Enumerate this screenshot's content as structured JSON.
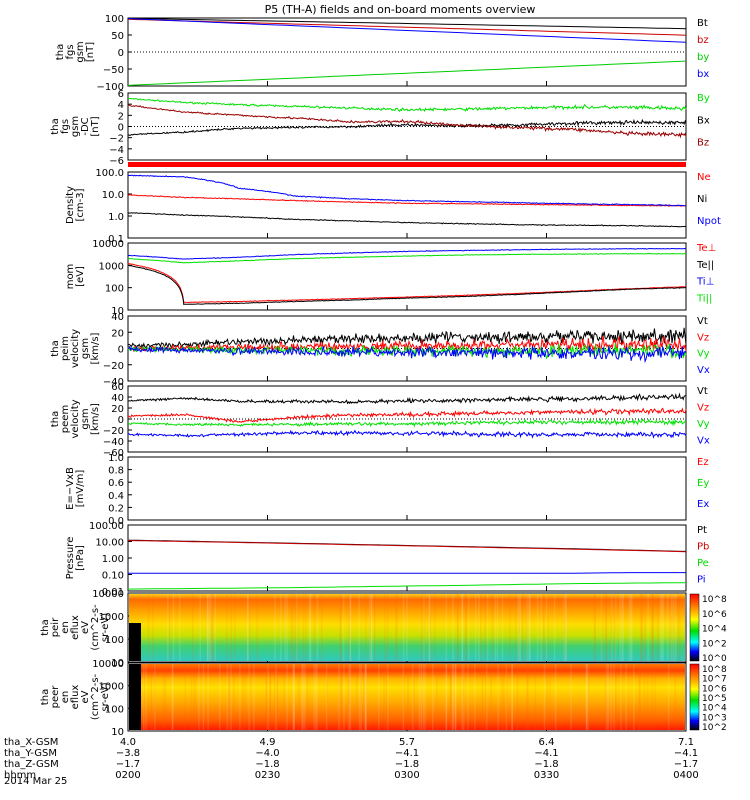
{
  "title": "P5 (TH-A) fields and on-board moments overview",
  "date_label": "2014 Mar 25",
  "colors": {
    "black": "#000000",
    "red": "#ff0000",
    "darkred": "#990000",
    "green": "#00e000",
    "blue": "#0000ff"
  },
  "chart_data": [
    {
      "type": "line",
      "id": "fgs",
      "ylabel": [
        "tha",
        "fgs",
        "gsm",
        "[nT]"
      ],
      "yticks": [
        "100",
        "50",
        "0",
        "−50",
        "−100"
      ],
      "ylim": [
        -105,
        105
      ],
      "x": [
        "0200",
        "0400"
      ],
      "series": [
        {
          "name": "Bt",
          "color": "#000000",
          "values": [
            104,
            72
          ]
        },
        {
          "name": "bz",
          "color": "#cc0000",
          "values": [
            101,
            52
          ]
        },
        {
          "name": "by",
          "color": "#00cc00",
          "values": [
            -103,
            -28
          ]
        },
        {
          "name": "bx",
          "color": "#0000ff",
          "values": [
            103,
            30
          ]
        }
      ]
    },
    {
      "type": "line",
      "id": "fgs_dc",
      "ylabel": [
        "tha",
        "fgs",
        "gsm",
        "-DC",
        "[nT]"
      ],
      "yticks": [
        "6",
        "4",
        "2",
        "0",
        "−2",
        "−4",
        "−6"
      ],
      "ylim": [
        -6,
        6
      ],
      "series": [
        {
          "name": "By",
          "color": "#00e000",
          "values": [
            5.0,
            4.3,
            3.9,
            3.6,
            3.3,
            3.0,
            3.1,
            3.3,
            3.5,
            3.4,
            3.2
          ]
        },
        {
          "name": "Bx",
          "color": "#000000",
          "values": [
            -1.5,
            -1.0,
            -0.3,
            -0.2,
            0.0,
            0.3,
            0.1,
            0.3,
            0.6,
            0.7,
            0.7
          ]
        },
        {
          "name": "Bz",
          "color": "#990000",
          "values": [
            3.8,
            2.6,
            2.0,
            1.5,
            0.8,
            0.9,
            0.2,
            -0.2,
            -0.5,
            -1.3,
            -1.5
          ]
        }
      ]
    },
    {
      "type": "line",
      "id": "density",
      "ylabel": [
        "Density",
        "[cm-3]"
      ],
      "yticks": [
        "100.0",
        "10.0",
        "1.0",
        "0.1"
      ],
      "log": true,
      "ylim": [
        0.1,
        100
      ],
      "series": [
        {
          "name": "Ne",
          "color": "#ff0000",
          "values": [
            9,
            7,
            6.0,
            5.0,
            4.3,
            3.8,
            3.6,
            3.4,
            3.2,
            3.0,
            2.9
          ]
        },
        {
          "name": "Ni",
          "color": "#000000",
          "values": [
            1.4,
            1.1,
            0.9,
            0.7,
            0.6,
            0.5,
            0.45,
            0.4,
            0.38,
            0.36,
            0.33
          ]
        },
        {
          "name": "Npot",
          "color": "#0000ff",
          "values": [
            70,
            60,
            18,
            8,
            6,
            5,
            4.5,
            4,
            3.6,
            3.3,
            3.0
          ]
        }
      ]
    },
    {
      "type": "line",
      "id": "temp",
      "ylabel": [
        "mom",
        "[eV]"
      ],
      "yticks": [
        "10000",
        "1000",
        "100",
        "10"
      ],
      "log": true,
      "ylim": [
        10,
        10000
      ],
      "series": [
        {
          "name": "Te⊥",
          "color": "#ff0000",
          "values": [
            1200,
            22,
            24,
            28,
            32,
            38,
            45,
            55,
            70,
            90,
            110
          ]
        },
        {
          "name": "Te||",
          "color": "#000000",
          "values": [
            1000,
            18,
            20,
            24,
            28,
            34,
            40,
            50,
            65,
            85,
            100
          ]
        },
        {
          "name": "Ti⊥",
          "color": "#0000ff",
          "values": [
            2800,
            1900,
            2300,
            3000,
            3600,
            4200,
            4600,
            5000,
            5300,
            5500,
            5600
          ]
        },
        {
          "name": "Ti||",
          "color": "#00e000",
          "values": [
            2000,
            1300,
            1600,
            2000,
            2300,
            2600,
            2900,
            3100,
            3200,
            3300,
            3300
          ]
        }
      ]
    },
    {
      "type": "line",
      "id": "peim",
      "ylabel": [
        "tha",
        "peim",
        "velocity",
        "gsm",
        "[km/s]"
      ],
      "yticks": [
        "40",
        "20",
        "0",
        "−20",
        "−40"
      ],
      "ylim": [
        -40,
        40
      ],
      "series": [
        {
          "name": "Vt",
          "color": "#000000",
          "values": [
            3,
            5,
            8,
            10,
            12,
            13,
            14,
            14,
            15,
            15,
            14
          ]
        },
        {
          "name": "Vz",
          "color": "#ff0000",
          "values": [
            0,
            1,
            2,
            2,
            3,
            3,
            4,
            4,
            4,
            5,
            4
          ]
        },
        {
          "name": "Vy",
          "color": "#00e000",
          "values": [
            0,
            -1,
            -2,
            -2,
            -3,
            -3,
            -3,
            -4,
            -3,
            -3,
            -3
          ]
        },
        {
          "name": "Vx",
          "color": "#0000ff",
          "values": [
            -1,
            -2,
            -3,
            -4,
            -4,
            -5,
            -5,
            -6,
            -6,
            -6,
            -6
          ]
        }
      ]
    },
    {
      "type": "line",
      "id": "peem",
      "ylabel": [
        "tha",
        "peem",
        "velocity",
        "gsm",
        "[km/s]"
      ],
      "yticks": [
        "60",
        "40",
        "20",
        "0",
        "−20",
        "−40",
        "−60"
      ],
      "ylim": [
        -60,
        60
      ],
      "series": [
        {
          "name": "Vt",
          "color": "#000000",
          "values": [
            33,
            38,
            32,
            32,
            31,
            33,
            34,
            36,
            37,
            39,
            40
          ]
        },
        {
          "name": "Vz",
          "color": "#ff0000",
          "values": [
            5,
            8,
            -5,
            3,
            7,
            8,
            10,
            12,
            13,
            14,
            13
          ]
        },
        {
          "name": "Vy",
          "color": "#00e000",
          "values": [
            -8,
            -10,
            -10,
            -10,
            -9,
            -9,
            -7,
            -6,
            -6,
            -6,
            -5
          ]
        },
        {
          "name": "Vx",
          "color": "#0000ff",
          "values": [
            -28,
            -30,
            -28,
            -25,
            -25,
            -26,
            -27,
            -28,
            -28,
            -28,
            -28
          ]
        }
      ]
    },
    {
      "type": "line",
      "id": "efield",
      "ylabel": [
        "E=−VxB",
        "[mV/m]"
      ],
      "yticks": [
        "1.0",
        "0.8",
        "0.6",
        "0.4",
        "0.2",
        "0.0"
      ],
      "ylim": [
        0,
        1
      ],
      "series": [
        {
          "name": "Ez",
          "color": "#ff0000",
          "values": []
        },
        {
          "name": "Ey",
          "color": "#00e000",
          "values": []
        },
        {
          "name": "Ex",
          "color": "#0000ff",
          "values": []
        }
      ]
    },
    {
      "type": "line",
      "id": "pressure",
      "ylabel": [
        "Pressure",
        "[nPa]"
      ],
      "yticks": [
        "100.00",
        "10.00",
        "1.00",
        "0.10",
        "0.01"
      ],
      "log": true,
      "ylim": [
        0.01,
        100
      ],
      "series": [
        {
          "name": "Pt",
          "color": "#000000",
          "values": [
            12,
            10.5,
            9,
            7.8,
            6.7,
            5.7,
            4.9,
            4.2,
            3.6,
            3.0,
            2.5
          ]
        },
        {
          "name": "Pb",
          "color": "#cc0000",
          "values": [
            11.5,
            10,
            8.7,
            7.5,
            6.4,
            5.5,
            4.7,
            4.0,
            3.4,
            2.9,
            2.4
          ]
        },
        {
          "name": "Pe",
          "color": "#00e000",
          "values": [
            0.013,
            0.014,
            0.015,
            0.016,
            0.018,
            0.02,
            0.022,
            0.025,
            0.028,
            0.03,
            0.032
          ]
        },
        {
          "name": "Pi",
          "color": "#0000ff",
          "values": [
            0.12,
            0.12,
            0.12,
            0.12,
            0.12,
            0.12,
            0.12,
            0.12,
            0.12,
            0.13,
            0.13
          ]
        }
      ]
    },
    {
      "type": "heatmap",
      "id": "peir",
      "ylabel": [
        "tha",
        "peir",
        "en",
        "eflux",
        "eV",
        "(cm^2-s-",
        "sr-eV)"
      ],
      "yticks": [
        "10000",
        "1000",
        "100",
        "10"
      ],
      "log": true,
      "colorbar": [
        "10^8",
        "10^6",
        "10^4",
        "10^2",
        "10^0"
      ]
    },
    {
      "type": "heatmap",
      "id": "peer",
      "ylabel": [
        "tha",
        "peer",
        "en",
        "eflux",
        "eV",
        "(cm^2-s-",
        "sr-eV)"
      ],
      "yticks": [
        "10000",
        "1000",
        "100",
        "10"
      ],
      "log": true,
      "colorbar": [
        "10^8",
        "10^7",
        "10^6",
        "10^5",
        "10^4",
        "10^3",
        "10^2"
      ]
    }
  ],
  "xaxis": {
    "rows": [
      {
        "label": "tha_X-GSM",
        "values": [
          "4.0",
          "4.9",
          "5.7",
          "6.4",
          "7.1"
        ]
      },
      {
        "label": "tha_Y-GSM",
        "values": [
          "−3.8",
          "−4.0",
          "−4.1",
          "−4.1",
          "−4.1"
        ]
      },
      {
        "label": "tha_Z-GSM",
        "values": [
          "−1.7",
          "−1.8",
          "−1.8",
          "−1.8",
          "−1.7"
        ]
      },
      {
        "label": "hhmm",
        "values": [
          "0200",
          "0230",
          "0300",
          "0330",
          "0400"
        ]
      }
    ]
  }
}
